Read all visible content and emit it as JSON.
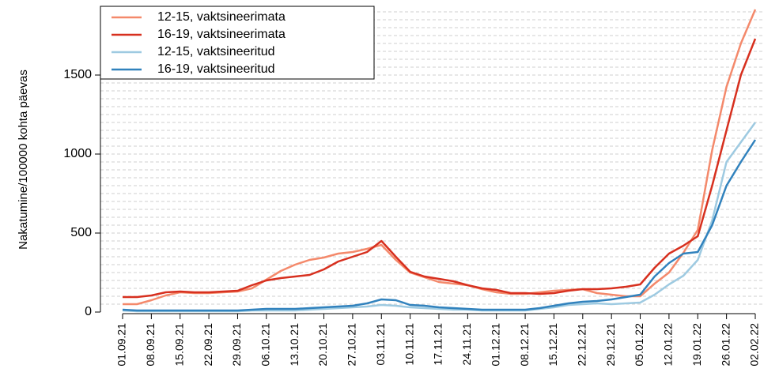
{
  "chart_data": {
    "type": "line",
    "y_label": "Nakatumine/100000 kohta päevas",
    "categories": [
      "01.09.21",
      null,
      "08.09.21",
      null,
      "15.09.21",
      null,
      "22.09.21",
      null,
      "29.09.21",
      null,
      "06.10.21",
      null,
      "13.10.21",
      null,
      "20.10.21",
      null,
      "27.10.21",
      null,
      "03.11.21",
      null,
      "10.11.21",
      null,
      "17.11.21",
      null,
      "24.11.21",
      null,
      "01.12.21",
      null,
      "08.12.21",
      null,
      "15.12.21",
      null,
      "22.12.21",
      null,
      "29.12.21",
      null,
      "05.01.22",
      null,
      "12.01.22",
      null,
      "19.01.22",
      null,
      "26.01.22",
      null,
      "02.02.22"
    ],
    "series": [
      {
        "name": "12-15, vaktsineerimata",
        "color": "#f4896b",
        "values": [
          50,
          50,
          75,
          105,
          125,
          120,
          120,
          125,
          130,
          150,
          205,
          260,
          300,
          330,
          345,
          370,
          380,
          400,
          425,
          330,
          250,
          220,
          190,
          180,
          170,
          145,
          125,
          115,
          115,
          125,
          135,
          140,
          145,
          120,
          110,
          100,
          100,
          180,
          250,
          375,
          520,
          1025,
          1425,
          1700,
          1915
        ]
      },
      {
        "name": "16-19, vaktsineerimata",
        "color": "#d7301f",
        "values": [
          95,
          95,
          105,
          125,
          130,
          125,
          125,
          130,
          135,
          170,
          200,
          215,
          225,
          235,
          270,
          320,
          350,
          380,
          450,
          350,
          255,
          225,
          210,
          195,
          170,
          150,
          140,
          120,
          120,
          115,
          120,
          135,
          145,
          145,
          150,
          160,
          175,
          280,
          370,
          420,
          480,
          800,
          1150,
          1500,
          1730
        ]
      },
      {
        "name": "12-15, vaktsineeritud",
        "color": "#9ecae1",
        "values": [
          10,
          5,
          5,
          5,
          5,
          5,
          5,
          5,
          5,
          10,
          10,
          10,
          10,
          15,
          20,
          25,
          30,
          35,
          45,
          40,
          30,
          25,
          20,
          15,
          15,
          10,
          10,
          10,
          10,
          20,
          30,
          45,
          50,
          55,
          50,
          55,
          60,
          110,
          175,
          230,
          330,
          580,
          950,
          1075,
          1200
        ]
      },
      {
        "name": "16-19, vaktsineeritud",
        "color": "#3182bd",
        "values": [
          15,
          10,
          10,
          10,
          10,
          10,
          10,
          10,
          10,
          15,
          20,
          20,
          20,
          25,
          30,
          35,
          40,
          55,
          80,
          75,
          45,
          40,
          30,
          25,
          20,
          15,
          15,
          15,
          15,
          25,
          40,
          55,
          65,
          70,
          80,
          95,
          110,
          225,
          310,
          370,
          380,
          550,
          800,
          950,
          1090
        ]
      }
    ],
    "ylim": [
      0,
      1935
    ],
    "yticks": [
      0,
      500,
      1000,
      1500
    ],
    "grid_interval": 50,
    "legend": "top-left"
  }
}
